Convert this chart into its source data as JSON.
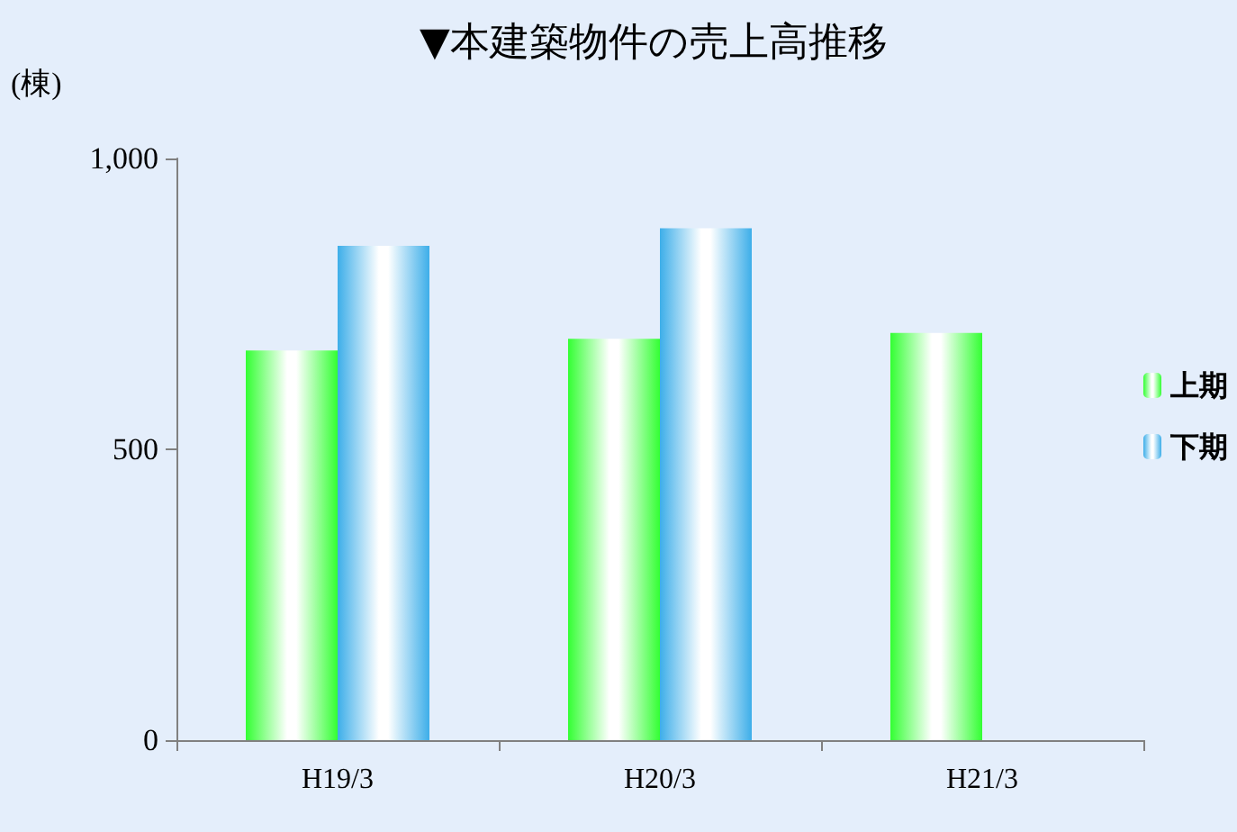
{
  "chart_data": {
    "type": "bar",
    "title": "▼本建築物件の売上高推移",
    "ylabel": "(棟)",
    "categories": [
      "H19/3",
      "H20/3",
      "H21/3"
    ],
    "series": [
      {
        "name": "上期",
        "color": "#33ff33",
        "values": [
          670,
          690,
          700
        ]
      },
      {
        "name": "下期",
        "color": "#3daee9",
        "values": [
          850,
          880,
          null
        ]
      }
    ],
    "ylim": [
      0,
      1000
    ],
    "yticks": [
      0,
      500,
      {
        "value": 1000,
        "label": "1,000"
      }
    ],
    "grid": false,
    "legend": "right"
  }
}
